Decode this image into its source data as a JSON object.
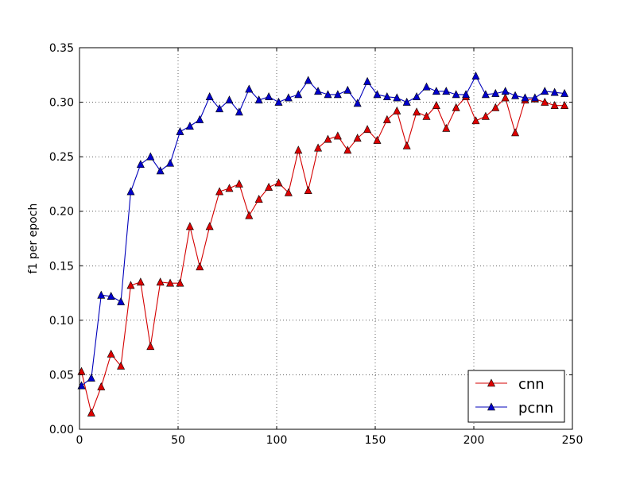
{
  "chart_data": {
    "type": "line",
    "title": "",
    "xlabel": "",
    "ylabel": "f1 per epoch",
    "xlim": [
      0,
      250
    ],
    "ylim": [
      0,
      0.35
    ],
    "x_ticks": [
      "0",
      "50",
      "100",
      "150",
      "200",
      "250"
    ],
    "y_ticks": [
      "0.00",
      "0.05",
      "0.10",
      "0.15",
      "0.20",
      "0.25",
      "0.30",
      "0.35"
    ],
    "grid": true,
    "legend_position": "lower-right",
    "x": [
      1,
      6,
      11,
      16,
      21,
      26,
      31,
      36,
      41,
      46,
      51,
      56,
      61,
      66,
      71,
      76,
      81,
      86,
      91,
      96,
      101,
      106,
      111,
      116,
      121,
      126,
      131,
      136,
      141,
      146,
      151,
      156,
      161,
      166,
      171,
      176,
      181,
      186,
      191,
      196,
      201,
      206,
      211,
      216,
      221,
      226,
      231,
      236,
      241,
      246
    ],
    "series": [
      {
        "name": "cnn",
        "color": "#d40000",
        "marker_color": "#dd0000",
        "values": [
          0.053,
          0.015,
          0.039,
          0.069,
          0.058,
          0.132,
          0.135,
          0.076,
          0.135,
          0.134,
          0.134,
          0.186,
          0.149,
          0.186,
          0.218,
          0.221,
          0.225,
          0.196,
          0.211,
          0.222,
          0.226,
          0.217,
          0.256,
          0.219,
          0.258,
          0.266,
          0.269,
          0.256,
          0.267,
          0.275,
          0.265,
          0.284,
          0.292,
          0.26,
          0.291,
          0.287,
          0.297,
          0.276,
          0.295,
          0.305,
          0.283,
          0.287,
          0.295,
          0.304,
          0.272,
          0.302,
          0.303,
          0.3,
          0.297,
          0.297
        ]
      },
      {
        "name": "pcnn",
        "color": "#0000bb",
        "marker_color": "#0000cc",
        "values": [
          0.04,
          0.047,
          0.123,
          0.122,
          0.117,
          0.218,
          0.243,
          0.25,
          0.237,
          0.244,
          0.273,
          0.278,
          0.284,
          0.305,
          0.294,
          0.302,
          0.291,
          0.312,
          0.302,
          0.305,
          0.3,
          0.304,
          0.307,
          0.32,
          0.31,
          0.307,
          0.307,
          0.311,
          0.299,
          0.319,
          0.307,
          0.305,
          0.304,
          0.3,
          0.305,
          0.314,
          0.31,
          0.31,
          0.307,
          0.307,
          0.324,
          0.307,
          0.308,
          0.31,
          0.306,
          0.304,
          0.304,
          0.31,
          0.309,
          0.308
        ]
      }
    ]
  }
}
